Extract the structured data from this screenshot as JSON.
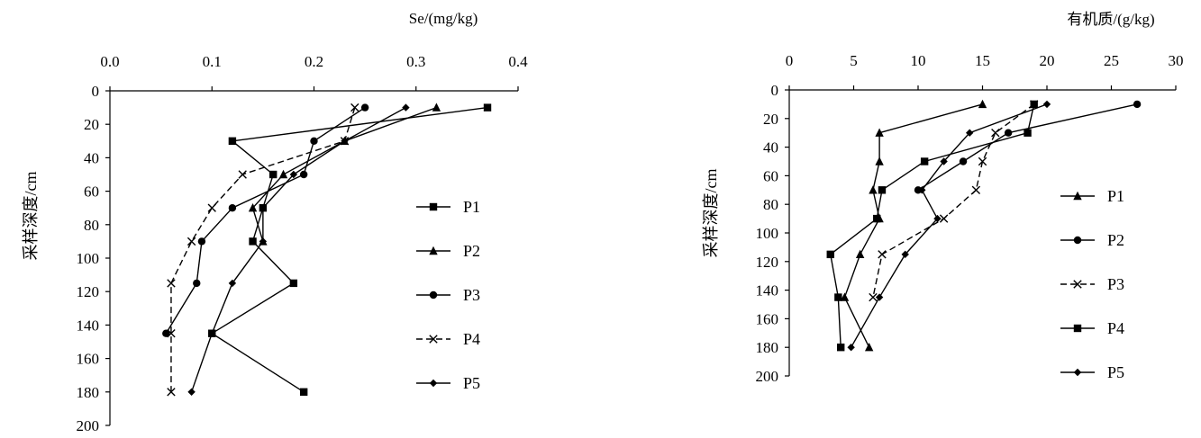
{
  "chart_data": [
    {
      "type": "line",
      "xlabel": "Se/(mg/kg)",
      "ylabel": "采样深度/cm",
      "xlim": [
        0,
        0.4
      ],
      "ylim": [
        0,
        200
      ],
      "x_axis_position": "top",
      "y_reversed": true,
      "x_ticks": [
        0.0,
        0.1,
        0.2,
        0.3,
        0.4
      ],
      "x_tick_labels": [
        "0.0",
        "0.1",
        "0.2",
        "0.3",
        "0.4"
      ],
      "y_ticks": [
        0,
        20,
        40,
        60,
        80,
        100,
        120,
        140,
        160,
        180,
        200
      ],
      "y_tick_labels": [
        "0",
        "20",
        "40",
        "60",
        "80",
        "100",
        "120",
        "140",
        "160",
        "180",
        "200"
      ],
      "grid": false,
      "legend_position": "right",
      "series": [
        {
          "name": "P1",
          "marker": "square",
          "dash": "solid",
          "points": [
            [
              0.37,
              10
            ],
            [
              0.12,
              30
            ],
            [
              0.16,
              50
            ],
            [
              0.15,
              70
            ],
            [
              0.14,
              90
            ],
            [
              0.18,
              115
            ],
            [
              0.1,
              145
            ],
            [
              0.19,
              180
            ]
          ]
        },
        {
          "name": "P2",
          "marker": "triangle",
          "dash": "solid",
          "points": [
            [
              0.32,
              10
            ],
            [
              0.23,
              30
            ],
            [
              0.17,
              50
            ],
            [
              0.14,
              70
            ],
            [
              0.15,
              90
            ]
          ]
        },
        {
          "name": "P3",
          "marker": "circle",
          "dash": "solid",
          "points": [
            [
              0.25,
              10
            ],
            [
              0.2,
              30
            ],
            [
              0.19,
              50
            ],
            [
              0.12,
              70
            ],
            [
              0.09,
              90
            ],
            [
              0.085,
              115
            ],
            [
              0.055,
              145
            ]
          ]
        },
        {
          "name": "P4",
          "marker": "x",
          "dash": "dashed",
          "points": [
            [
              0.24,
              10
            ],
            [
              0.23,
              30
            ],
            [
              0.13,
              50
            ],
            [
              0.1,
              70
            ],
            [
              0.08,
              90
            ],
            [
              0.06,
              115
            ],
            [
              0.06,
              145
            ],
            [
              0.06,
              180
            ]
          ]
        },
        {
          "name": "P5",
          "marker": "diamond",
          "dash": "solid",
          "points": [
            [
              0.29,
              10
            ],
            [
              0.23,
              30
            ],
            [
              0.18,
              50
            ],
            [
              0.15,
              70
            ],
            [
              0.15,
              90
            ],
            [
              0.12,
              115
            ],
            [
              0.1,
              145
            ],
            [
              0.08,
              180
            ]
          ]
        }
      ]
    },
    {
      "type": "line",
      "xlabel": "有机质/(g/kg)",
      "ylabel": "采样深度/cm",
      "xlim": [
        0,
        30
      ],
      "ylim": [
        0,
        200
      ],
      "x_axis_position": "top",
      "y_reversed": true,
      "x_ticks": [
        0,
        5,
        10,
        15,
        20,
        25,
        30
      ],
      "x_tick_labels": [
        "0",
        "5",
        "10",
        "15",
        "20",
        "25",
        "30"
      ],
      "y_ticks": [
        0,
        20,
        40,
        60,
        80,
        100,
        120,
        140,
        160,
        180,
        200
      ],
      "y_tick_labels": [
        "0",
        "20",
        "40",
        "60",
        "80",
        "100",
        "120",
        "140",
        "160",
        "180",
        "200"
      ],
      "grid": false,
      "legend_position": "right",
      "series": [
        {
          "name": "P1",
          "marker": "triangle",
          "dash": "solid",
          "points": [
            [
              15,
              10
            ],
            [
              7,
              30
            ],
            [
              7,
              50
            ],
            [
              6.5,
              70
            ],
            [
              7,
              90
            ],
            [
              5.5,
              115
            ],
            [
              4.3,
              145
            ],
            [
              6.2,
              180
            ]
          ]
        },
        {
          "name": "P2",
          "marker": "circle",
          "dash": "solid",
          "points": [
            [
              27,
              10
            ],
            [
              17,
              30
            ],
            [
              13.5,
              50
            ],
            [
              10,
              70
            ]
          ]
        },
        {
          "name": "P3",
          "marker": "x",
          "dash": "dashed",
          "points": [
            [
              19,
              10
            ],
            [
              16,
              30
            ],
            [
              15,
              50
            ],
            [
              14.5,
              70
            ],
            [
              12,
              90
            ],
            [
              7.2,
              115
            ],
            [
              6.5,
              145
            ]
          ]
        },
        {
          "name": "P4",
          "marker": "square",
          "dash": "solid",
          "points": [
            [
              19,
              10
            ],
            [
              18.5,
              30
            ],
            [
              10.5,
              50
            ],
            [
              7.2,
              70
            ],
            [
              6.8,
              90
            ],
            [
              3.2,
              115
            ],
            [
              3.8,
              145
            ],
            [
              4,
              180
            ]
          ]
        },
        {
          "name": "P5",
          "marker": "diamond",
          "dash": "solid",
          "points": [
            [
              20,
              10
            ],
            [
              14,
              30
            ],
            [
              12,
              50
            ],
            [
              10.3,
              70
            ],
            [
              11.5,
              90
            ],
            [
              9,
              115
            ],
            [
              7,
              145
            ],
            [
              4.8,
              180
            ]
          ]
        }
      ]
    }
  ]
}
